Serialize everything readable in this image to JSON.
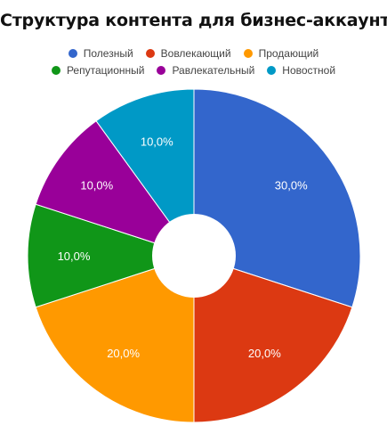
{
  "chart_data": {
    "type": "pie",
    "title": "Структура контента для бизнес-аккаунта",
    "donut": true,
    "legend_position": "top",
    "slices": [
      {
        "name": "Полезный",
        "value": 30,
        "label": "30,0%",
        "color": "#3366cc"
      },
      {
        "name": "Вовлекающий",
        "value": 20,
        "label": "20,0%",
        "color": "#dc3912"
      },
      {
        "name": "Продающий",
        "value": 20,
        "label": "20,0%",
        "color": "#ff9900"
      },
      {
        "name": "Репутационный",
        "value": 10,
        "label": "10,0%",
        "color": "#109618"
      },
      {
        "name": "Равлекательный",
        "value": 10,
        "label": "10,0%",
        "color": "#990099"
      },
      {
        "name": "Новостной",
        "value": 10,
        "label": "10,0%",
        "color": "#0099c6"
      }
    ]
  }
}
